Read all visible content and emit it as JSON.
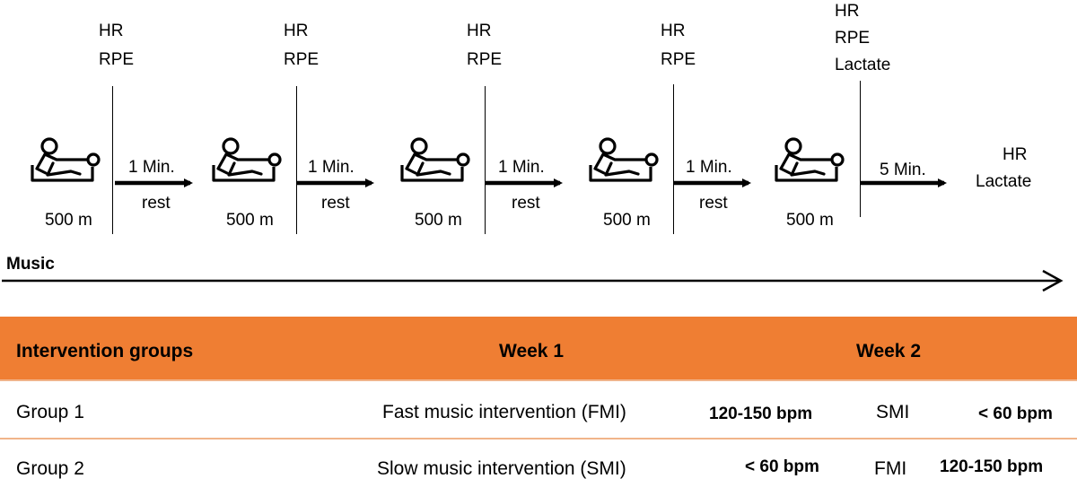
{
  "protocol": {
    "measures": [
      "HR",
      "RPE",
      "HR",
      "RPE",
      "HR",
      "RPE",
      "HR",
      "RPE",
      "HR",
      "RPE",
      "Lactate"
    ],
    "distances": [
      "500 m",
      "500 m",
      "500 m",
      "500 m",
      "500 m"
    ],
    "rests": [
      {
        "duration": "1 Min.",
        "label": "rest"
      },
      {
        "duration": "1 Min.",
        "label": "rest"
      },
      {
        "duration": "1 Min.",
        "label": "rest"
      },
      {
        "duration": "1 Min.",
        "label": "rest"
      },
      {
        "duration": "5 Min.",
        "label": ""
      }
    ],
    "final_measures": [
      "HR",
      "Lactate"
    ],
    "music_label": "Music"
  },
  "table": {
    "headers": [
      "Intervention groups",
      "Week 1",
      "Week 2"
    ],
    "rows": [
      {
        "group": "Group 1",
        "week1": "Fast music intervention (FMI)",
        "week1_bpm": "120-150 bpm",
        "week2": "SMI",
        "week2_bpm": "< 60 bpm"
      },
      {
        "group": "Group 2",
        "week1": "Slow music intervention (SMI)",
        "week1_bpm": "< 60 bpm",
        "week2": "FMI",
        "week2_bpm": "120-150 bpm"
      }
    ],
    "header_color": "#ef7e33",
    "separator_color": "#f1b48a"
  },
  "icons": [
    "rower-icon"
  ]
}
